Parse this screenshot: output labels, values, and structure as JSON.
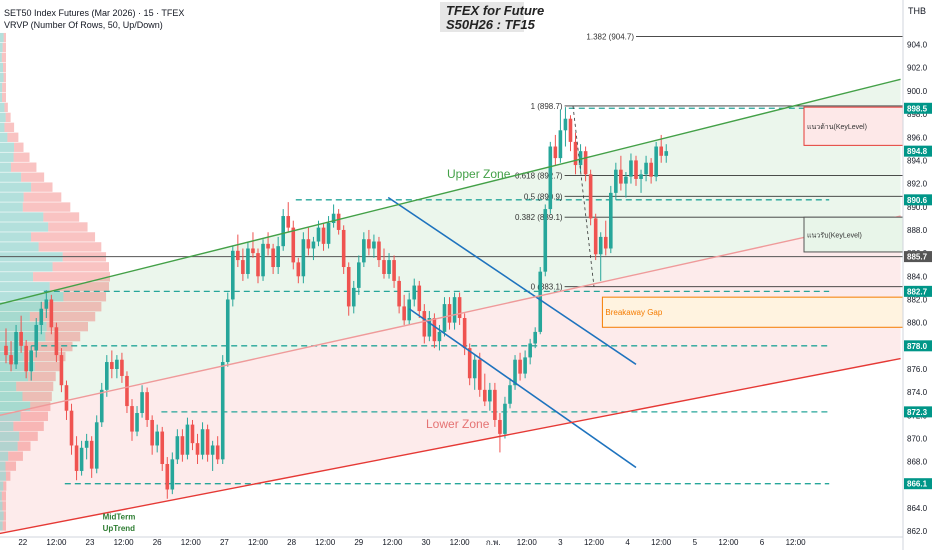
{
  "header": {
    "symbol_line": "SET50 Index Futures (Mar 2026) · 15 · TFEX",
    "indicator_line": "VRVP (Number Of Rows, 50, Up/Down)"
  },
  "title": {
    "line1": "TFEX for Future",
    "line2": "S50H26 : TF15"
  },
  "currency": "THB",
  "colors": {
    "up": "#26a69a",
    "down": "#ef5350",
    "green_line": "#43a047",
    "red_line": "#e53935",
    "blue_line": "#1e73be",
    "dash_teal": "#26a69a",
    "orange": "#f57c00"
  },
  "chart_data": {
    "type": "candlestick",
    "ylim": [
      861.5,
      907.5
    ],
    "y_ticks": [
      862,
      864,
      866,
      868,
      870,
      872,
      874,
      876,
      878,
      880,
      882,
      884,
      886,
      888,
      890,
      892,
      894,
      896,
      898,
      900,
      902,
      904
    ],
    "x_labels": [
      {
        "label": "22",
        "x": 0.4
      },
      {
        "label": "12:00",
        "x": 1.2
      },
      {
        "label": "23",
        "x": 2.0
      },
      {
        "label": "12:00",
        "x": 2.8
      },
      {
        "label": "26",
        "x": 3.6
      },
      {
        "label": "12:00",
        "x": 4.4
      },
      {
        "label": "27",
        "x": 5.2
      },
      {
        "label": "12:00",
        "x": 6.0
      },
      {
        "label": "28",
        "x": 6.8
      },
      {
        "label": "12:00",
        "x": 7.6
      },
      {
        "label": "29",
        "x": 8.4
      },
      {
        "label": "12:00",
        "x": 9.2
      },
      {
        "label": "30",
        "x": 10.0
      },
      {
        "label": "12:00",
        "x": 10.8
      },
      {
        "label": "ก.พ.",
        "x": 11.6
      },
      {
        "label": "12:00",
        "x": 12.4
      },
      {
        "label": "3",
        "x": 13.2
      },
      {
        "label": "12:00",
        "x": 14.0
      },
      {
        "label": "4",
        "x": 14.8
      },
      {
        "label": "12:00",
        "x": 15.6
      },
      {
        "label": "5",
        "x": 16.4
      },
      {
        "label": "12:00",
        "x": 17.2
      },
      {
        "label": "6",
        "x": 18.0
      },
      {
        "label": "12:00",
        "x": 18.8
      }
    ],
    "price_badges": [
      {
        "label": "898.5",
        "y": 898.5,
        "color": "#009688"
      },
      {
        "label": "894.8",
        "y": 894.8,
        "color": "#009688"
      },
      {
        "label": "890.6",
        "y": 890.6,
        "color": "#009688"
      },
      {
        "label": "885.7",
        "y": 885.7,
        "color": "#555555"
      },
      {
        "label": "882.7",
        "y": 882.7,
        "color": "#009688"
      },
      {
        "label": "878.0",
        "y": 878.0,
        "color": "#009688"
      },
      {
        "label": "872.3",
        "y": 872.3,
        "color": "#009688"
      },
      {
        "label": "866.1",
        "y": 866.1,
        "color": "#009688"
      }
    ],
    "fib_levels": [
      {
        "label": "1.382 (904.7)",
        "y": 904.7
      },
      {
        "label": "1 (898.7)",
        "y": 898.7
      },
      {
        "label": "0.618 (892.7)",
        "y": 892.7
      },
      {
        "label": "0.5 (890.9)",
        "y": 890.9
      },
      {
        "label": "0.382 (889.1)",
        "y": 889.1
      },
      {
        "label": "0 (883.1)",
        "y": 883.1
      }
    ],
    "dashed_levels": [
      {
        "y": 898.5,
        "x0": 13.4,
        "x1": 19.6
      },
      {
        "y": 890.6,
        "x0": 6.9,
        "x1": 19.6
      },
      {
        "y": 882.7,
        "x0": 0.9,
        "x1": 19.6
      },
      {
        "y": 878.0,
        "x0": 0.6,
        "x1": 19.6
      },
      {
        "y": 872.3,
        "x0": 3.7,
        "x1": 19.6
      },
      {
        "y": 866.1,
        "x0": 1.4,
        "x1": 19.6
      }
    ],
    "annotations": {
      "upper_zone": "Upper Zone",
      "lower_zone": "Lower Zone",
      "breakaway_gap": "Breakaway Gap",
      "resistance_label": "แนวต้าน(KeyLevel)",
      "support_label": "แนวรับ(KeyLevel)",
      "midterm_line1": "MidTerm",
      "midterm_line2": "UpTrend"
    },
    "candles": [
      [
        0.0,
        878.0,
        879.5,
        876.5,
        877.2
      ],
      [
        0.12,
        877.2,
        878.4,
        875.8,
        876.4
      ],
      [
        0.24,
        876.4,
        879.8,
        876.0,
        879.2
      ],
      [
        0.36,
        879.2,
        880.6,
        877.4,
        878.0
      ],
      [
        0.48,
        878.0,
        878.5,
        875.2,
        875.8
      ],
      [
        0.6,
        875.8,
        878.0,
        875.0,
        877.6
      ],
      [
        0.72,
        877.6,
        880.4,
        877.0,
        879.8
      ],
      [
        0.84,
        879.8,
        881.8,
        879.0,
        881.2
      ],
      [
        0.96,
        881.2,
        882.8,
        880.4,
        882.0
      ],
      [
        1.08,
        882.0,
        882.4,
        879.0,
        879.6
      ],
      [
        1.2,
        879.6,
        880.0,
        876.6,
        877.2
      ],
      [
        1.32,
        877.2,
        877.8,
        874.0,
        874.6
      ],
      [
        1.44,
        874.6,
        875.0,
        871.6,
        872.4
      ],
      [
        1.56,
        872.4,
        873.0,
        868.6,
        869.4
      ],
      [
        1.68,
        869.4,
        870.2,
        866.4,
        867.2
      ],
      [
        1.8,
        867.2,
        869.8,
        866.8,
        869.2
      ],
      [
        1.92,
        869.2,
        870.4,
        868.2,
        869.8
      ],
      [
        2.04,
        869.8,
        870.2,
        866.6,
        867.4
      ],
      [
        2.16,
        867.4,
        872.0,
        867.0,
        871.4
      ],
      [
        2.28,
        871.4,
        874.8,
        871.0,
        874.2
      ],
      [
        2.4,
        874.2,
        877.2,
        873.6,
        876.6
      ],
      [
        2.52,
        876.6,
        877.6,
        875.2,
        876.0
      ],
      [
        2.64,
        876.0,
        877.2,
        875.2,
        876.8
      ],
      [
        2.76,
        876.8,
        877.4,
        874.8,
        875.4
      ],
      [
        2.88,
        875.4,
        875.8,
        872.2,
        872.8
      ],
      [
        3.0,
        872.8,
        873.4,
        869.8,
        870.6
      ],
      [
        3.12,
        870.6,
        872.8,
        870.2,
        872.2
      ],
      [
        3.24,
        872.2,
        874.6,
        871.8,
        874.0
      ],
      [
        3.36,
        874.0,
        874.4,
        871.0,
        871.6
      ],
      [
        3.48,
        871.6,
        872.0,
        868.6,
        869.4
      ],
      [
        3.6,
        869.4,
        871.2,
        868.8,
        870.6
      ],
      [
        3.72,
        870.6,
        871.0,
        867.2,
        867.8
      ],
      [
        3.84,
        867.8,
        868.4,
        864.8,
        865.6
      ],
      [
        3.96,
        865.6,
        868.8,
        865.2,
        868.2
      ],
      [
        4.08,
        868.2,
        870.8,
        867.8,
        870.2
      ],
      [
        4.2,
        870.2,
        870.8,
        868.0,
        868.6
      ],
      [
        4.32,
        868.6,
        871.8,
        868.2,
        871.2
      ],
      [
        4.44,
        871.2,
        871.6,
        869.0,
        869.6
      ],
      [
        4.56,
        869.6,
        870.4,
        867.8,
        868.6
      ],
      [
        4.68,
        868.6,
        871.4,
        868.2,
        870.8
      ],
      [
        4.8,
        870.8,
        871.2,
        868.0,
        868.6
      ],
      [
        4.92,
        868.6,
        869.8,
        867.2,
        869.4
      ],
      [
        5.04,
        869.4,
        870.2,
        867.8,
        868.2
      ],
      [
        5.16,
        868.2,
        877.2,
        867.8,
        876.6
      ],
      [
        5.28,
        876.6,
        882.6,
        876.2,
        882.0
      ],
      [
        5.4,
        882.0,
        886.6,
        881.4,
        886.2
      ],
      [
        5.52,
        886.2,
        887.6,
        884.8,
        885.4
      ],
      [
        5.64,
        885.4,
        886.4,
        883.6,
        884.2
      ],
      [
        5.76,
        884.2,
        887.0,
        883.8,
        886.4
      ],
      [
        5.88,
        886.4,
        887.8,
        885.6,
        886.0
      ],
      [
        6.0,
        886.0,
        886.4,
        883.4,
        884.0
      ],
      [
        6.12,
        884.0,
        887.2,
        883.6,
        886.8
      ],
      [
        6.24,
        886.8,
        887.8,
        885.8,
        886.4
      ],
      [
        6.36,
        886.4,
        886.8,
        884.2,
        884.8
      ],
      [
        6.48,
        884.8,
        887.4,
        884.2,
        886.6
      ],
      [
        6.6,
        886.6,
        889.8,
        886.2,
        889.2
      ],
      [
        6.72,
        889.2,
        890.4,
        887.8,
        888.2
      ],
      [
        6.84,
        888.2,
        888.8,
        884.6,
        885.2
      ],
      [
        6.96,
        885.2,
        885.6,
        883.4,
        884.0
      ],
      [
        7.08,
        884.0,
        887.8,
        883.4,
        887.2
      ],
      [
        7.2,
        887.2,
        888.2,
        885.8,
        886.4
      ],
      [
        7.32,
        886.4,
        887.4,
        885.4,
        887.0
      ],
      [
        7.44,
        887.0,
        888.8,
        886.6,
        888.2
      ],
      [
        7.56,
        888.2,
        888.6,
        886.2,
        886.8
      ],
      [
        7.68,
        886.8,
        889.2,
        886.4,
        888.6
      ],
      [
        7.8,
        888.6,
        890.2,
        888.2,
        889.4
      ],
      [
        7.92,
        889.4,
        889.8,
        887.6,
        888.0
      ],
      [
        8.04,
        888.0,
        888.4,
        884.2,
        884.8
      ],
      [
        8.16,
        884.8,
        885.2,
        880.6,
        881.4
      ],
      [
        8.28,
        881.4,
        883.6,
        880.8,
        883.0
      ],
      [
        8.4,
        883.0,
        885.8,
        882.4,
        885.2
      ],
      [
        8.52,
        885.2,
        887.8,
        884.8,
        887.2
      ],
      [
        8.64,
        887.2,
        888.0,
        885.8,
        886.4
      ],
      [
        8.76,
        886.4,
        887.6,
        885.6,
        887.0
      ],
      [
        8.88,
        887.0,
        887.4,
        884.8,
        885.4
      ],
      [
        9.0,
        885.4,
        886.4,
        883.8,
        884.2
      ],
      [
        9.12,
        884.2,
        886.0,
        883.8,
        885.4
      ],
      [
        9.24,
        885.4,
        885.8,
        883.0,
        883.6
      ],
      [
        9.36,
        883.6,
        884.0,
        880.8,
        881.4
      ],
      [
        9.48,
        881.4,
        882.4,
        879.8,
        880.2
      ],
      [
        9.6,
        880.2,
        882.6,
        879.8,
        882.0
      ],
      [
        9.72,
        882.0,
        883.8,
        881.4,
        883.2
      ],
      [
        9.84,
        883.2,
        883.6,
        880.4,
        881.0
      ],
      [
        9.96,
        881.0,
        881.6,
        878.2,
        878.8
      ],
      [
        10.08,
        878.8,
        881.0,
        878.4,
        880.4
      ],
      [
        10.2,
        880.4,
        880.8,
        877.8,
        878.4
      ],
      [
        10.32,
        878.4,
        879.8,
        877.6,
        879.2
      ],
      [
        10.44,
        879.2,
        882.2,
        878.8,
        881.6
      ],
      [
        10.56,
        881.6,
        882.2,
        879.4,
        880.0
      ],
      [
        10.68,
        880.0,
        882.6,
        879.4,
        882.2
      ],
      [
        10.8,
        882.2,
        882.6,
        879.8,
        880.4
      ],
      [
        10.92,
        880.4,
        880.8,
        877.2,
        877.8
      ],
      [
        11.04,
        877.8,
        878.2,
        874.6,
        875.2
      ],
      [
        11.16,
        875.2,
        877.2,
        874.2,
        876.8
      ],
      [
        11.28,
        876.8,
        877.4,
        873.6,
        874.2
      ],
      [
        11.4,
        874.2,
        875.6,
        872.8,
        873.2
      ],
      [
        11.52,
        873.2,
        874.8,
        872.4,
        874.2
      ],
      [
        11.64,
        874.2,
        874.8,
        871.0,
        871.6
      ],
      [
        11.76,
        871.6,
        872.2,
        868.8,
        870.4
      ],
      [
        11.88,
        870.4,
        873.6,
        870.0,
        873.0
      ],
      [
        12.0,
        873.0,
        875.2,
        872.6,
        874.6
      ],
      [
        12.12,
        874.6,
        877.2,
        874.2,
        876.8
      ],
      [
        12.24,
        876.8,
        877.4,
        875.0,
        875.6
      ],
      [
        12.36,
        875.6,
        877.6,
        875.2,
        877.0
      ],
      [
        12.48,
        877.0,
        878.6,
        876.4,
        878.2
      ],
      [
        12.6,
        878.2,
        879.6,
        877.8,
        879.2
      ],
      [
        12.72,
        879.2,
        884.8,
        879.0,
        884.4
      ],
      [
        12.84,
        884.4,
        890.2,
        884.0,
        889.8
      ],
      [
        12.96,
        889.8,
        895.6,
        889.4,
        895.2
      ],
      [
        13.08,
        895.2,
        896.2,
        893.6,
        894.2
      ],
      [
        13.2,
        894.2,
        898.4,
        893.8,
        896.6
      ],
      [
        13.32,
        896.6,
        898.6,
        895.2,
        897.6
      ],
      [
        13.44,
        897.6,
        897.9,
        894.8,
        895.6
      ],
      [
        13.56,
        895.6,
        896.4,
        892.8,
        893.6
      ],
      [
        13.68,
        893.6,
        895.4,
        893.0,
        894.8
      ],
      [
        13.8,
        894.8,
        895.2,
        892.2,
        892.8
      ],
      [
        13.92,
        892.8,
        893.2,
        888.4,
        889.0
      ],
      [
        14.04,
        889.0,
        889.4,
        885.4,
        885.9
      ],
      [
        14.16,
        885.9,
        887.8,
        883.6,
        887.4
      ],
      [
        14.28,
        887.4,
        888.8,
        885.8,
        886.4
      ],
      [
        14.4,
        886.4,
        891.8,
        886.0,
        891.2
      ],
      [
        14.52,
        891.2,
        893.8,
        890.6,
        893.2
      ],
      [
        14.64,
        893.2,
        894.4,
        891.4,
        892.0
      ],
      [
        14.76,
        892.0,
        893.0,
        890.8,
        892.6
      ],
      [
        14.88,
        892.6,
        894.6,
        892.0,
        894.0
      ],
      [
        15.0,
        894.0,
        894.4,
        891.8,
        892.4
      ],
      [
        15.12,
        892.4,
        893.2,
        891.2,
        892.8
      ],
      [
        15.24,
        892.8,
        894.4,
        892.2,
        893.8
      ],
      [
        15.36,
        893.8,
        894.2,
        892.0,
        892.6
      ],
      [
        15.48,
        892.6,
        895.6,
        892.2,
        895.2
      ],
      [
        15.6,
        895.2,
        896.2,
        893.8,
        894.4
      ],
      [
        15.72,
        894.4,
        895.4,
        893.8,
        894.8
      ]
    ]
  }
}
